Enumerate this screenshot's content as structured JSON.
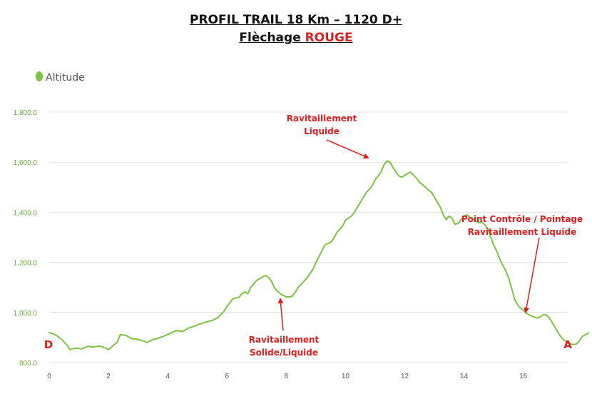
{
  "header": {
    "title_line1": "PROFIL TRAIL 18 Km – 1120 D+",
    "title_line2_prefix": "Flèchage ",
    "title_line2_accent": "ROUGE"
  },
  "colors": {
    "series": "#7dc242",
    "axis_text": "#6aab3a",
    "annotation": "#e11d1d",
    "grid": "#e3e3e3"
  },
  "chart_data": {
    "type": "line",
    "title": "PROFIL TRAIL 18 Km – 1120 D+",
    "subtitle": "Flèchage ROUGE",
    "xlabel": "",
    "ylabel": "",
    "xlim": [
      0,
      17.5
    ],
    "ylim": [
      800,
      1800
    ],
    "x_ticks": [
      0,
      2,
      4,
      6,
      8,
      10,
      12,
      14,
      16
    ],
    "y_ticks": [
      800,
      1000,
      1200,
      1400,
      1600,
      1800
    ],
    "y_tick_labels": [
      "800.0",
      "1,000.0",
      "1,200.0",
      "1,400.0",
      "1,600.0",
      "1,800.0"
    ],
    "grid": true,
    "legend": {
      "placement": "top-left",
      "entries": [
        "Altitude"
      ]
    },
    "series": [
      {
        "name": "Altitude",
        "points": [
          [
            0.0,
            920
          ],
          [
            0.2,
            912
          ],
          [
            0.4,
            895
          ],
          [
            0.6,
            870
          ],
          [
            0.7,
            852
          ],
          [
            0.9,
            858
          ],
          [
            1.1,
            855
          ],
          [
            1.3,
            865
          ],
          [
            1.5,
            862
          ],
          [
            1.7,
            866
          ],
          [
            1.9,
            858
          ],
          [
            2.0,
            852
          ],
          [
            2.1,
            862
          ],
          [
            2.3,
            882
          ],
          [
            2.4,
            912
          ],
          [
            2.6,
            908
          ],
          [
            2.8,
            895
          ],
          [
            3.0,
            893
          ],
          [
            3.2,
            885
          ],
          [
            3.3,
            880
          ],
          [
            3.5,
            892
          ],
          [
            3.7,
            898
          ],
          [
            3.9,
            907
          ],
          [
            4.1,
            918
          ],
          [
            4.3,
            928
          ],
          [
            4.5,
            924
          ],
          [
            4.7,
            938
          ],
          [
            4.9,
            945
          ],
          [
            5.1,
            955
          ],
          [
            5.3,
            962
          ],
          [
            5.5,
            968
          ],
          [
            5.7,
            980
          ],
          [
            5.9,
            1005
          ],
          [
            6.0,
            1025
          ],
          [
            6.2,
            1055
          ],
          [
            6.4,
            1060
          ],
          [
            6.5,
            1075
          ],
          [
            6.6,
            1082
          ],
          [
            6.7,
            1075
          ],
          [
            6.8,
            1100
          ],
          [
            7.0,
            1128
          ],
          [
            7.2,
            1142
          ],
          [
            7.3,
            1148
          ],
          [
            7.4,
            1140
          ],
          [
            7.5,
            1125
          ],
          [
            7.6,
            1100
          ],
          [
            7.7,
            1085
          ],
          [
            7.8,
            1075
          ],
          [
            7.9,
            1068
          ],
          [
            8.0,
            1062
          ],
          [
            8.1,
            1062
          ],
          [
            8.2,
            1065
          ],
          [
            8.3,
            1080
          ],
          [
            8.4,
            1100
          ],
          [
            8.5,
            1112
          ],
          [
            8.7,
            1138
          ],
          [
            8.9,
            1172
          ],
          [
            9.0,
            1200
          ],
          [
            9.2,
            1245
          ],
          [
            9.3,
            1270
          ],
          [
            9.5,
            1280
          ],
          [
            9.6,
            1295
          ],
          [
            9.7,
            1318
          ],
          [
            9.9,
            1345
          ],
          [
            10.0,
            1368
          ],
          [
            10.2,
            1385
          ],
          [
            10.3,
            1400
          ],
          [
            10.5,
            1440
          ],
          [
            10.7,
            1478
          ],
          [
            10.9,
            1505
          ],
          [
            11.0,
            1530
          ],
          [
            11.2,
            1560
          ],
          [
            11.3,
            1590
          ],
          [
            11.4,
            1605
          ],
          [
            11.5,
            1600
          ],
          [
            11.6,
            1580
          ],
          [
            11.7,
            1560
          ],
          [
            11.8,
            1545
          ],
          [
            11.9,
            1540
          ],
          [
            12.0,
            1548
          ],
          [
            12.1,
            1555
          ],
          [
            12.2,
            1560
          ],
          [
            12.3,
            1548
          ],
          [
            12.4,
            1535
          ],
          [
            12.5,
            1520
          ],
          [
            12.6,
            1510
          ],
          [
            12.7,
            1500
          ],
          [
            12.8,
            1488
          ],
          [
            12.9,
            1480
          ],
          [
            13.0,
            1460
          ],
          [
            13.1,
            1440
          ],
          [
            13.2,
            1420
          ],
          [
            13.3,
            1390
          ],
          [
            13.4,
            1370
          ],
          [
            13.5,
            1385
          ],
          [
            13.6,
            1375
          ],
          [
            13.7,
            1352
          ],
          [
            13.8,
            1355
          ],
          [
            13.9,
            1370
          ],
          [
            14.0,
            1385
          ],
          [
            14.1,
            1390
          ],
          [
            14.2,
            1380
          ],
          [
            14.3,
            1372
          ],
          [
            14.4,
            1365
          ],
          [
            14.5,
            1358
          ],
          [
            14.6,
            1360
          ],
          [
            14.7,
            1350
          ],
          [
            14.8,
            1335
          ],
          [
            14.9,
            1300
          ],
          [
            15.0,
            1270
          ],
          [
            15.1,
            1245
          ],
          [
            15.2,
            1215
          ],
          [
            15.3,
            1190
          ],
          [
            15.4,
            1168
          ],
          [
            15.5,
            1140
          ],
          [
            15.6,
            1100
          ],
          [
            15.7,
            1055
          ],
          [
            15.8,
            1032
          ],
          [
            15.9,
            1018
          ],
          [
            16.0,
            1008
          ],
          [
            16.1,
            998
          ],
          [
            16.2,
            990
          ],
          [
            16.3,
            985
          ],
          [
            16.4,
            980
          ],
          [
            16.5,
            978
          ],
          [
            16.6,
            985
          ],
          [
            16.7,
            992
          ],
          [
            16.8,
            988
          ],
          [
            16.9,
            975
          ],
          [
            17.0,
            955
          ],
          [
            17.1,
            935
          ],
          [
            17.2,
            915
          ],
          [
            17.3,
            898
          ],
          [
            17.4,
            888
          ],
          [
            17.5,
            880
          ],
          [
            17.6,
            875
          ],
          [
            17.7,
            872
          ],
          [
            17.8,
            875
          ],
          [
            17.9,
            888
          ],
          [
            18.0,
            905
          ],
          [
            18.1,
            912
          ],
          [
            18.2,
            918
          ]
        ]
      }
    ],
    "annotations": [
      {
        "text_lines": [
          "Ravitaillement",
          "Liquide"
        ],
        "target": [
          11.4,
          1605
        ]
      },
      {
        "text_lines": [
          "Ravitaillement",
          "Solide/Liquide"
        ],
        "target": [
          8.1,
          1062
        ]
      },
      {
        "text_lines": [
          "Point Contrôle / Pointage",
          "Ravitaillement Liquide"
        ],
        "target": [
          16.7,
          992
        ]
      }
    ],
    "endpoint_labels": [
      {
        "text": "D",
        "at": "start"
      },
      {
        "text": "A",
        "at": "end"
      }
    ]
  }
}
